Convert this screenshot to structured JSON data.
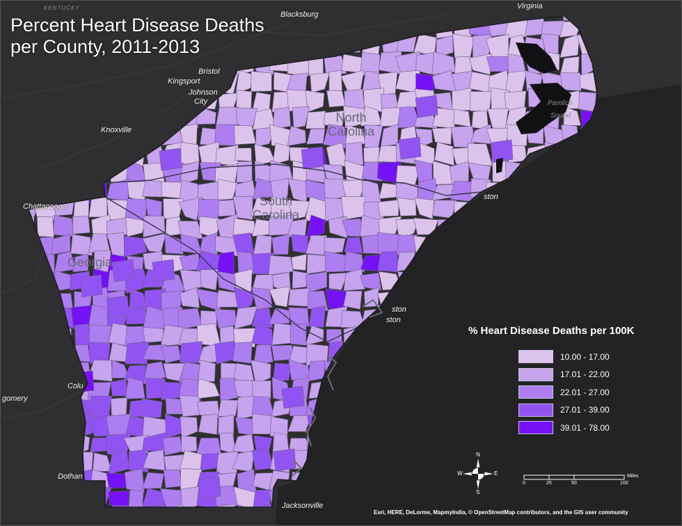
{
  "map": {
    "title_line1": "Percent Heart Disease Deaths",
    "title_line2": "per County, 2011-2013",
    "states": [
      {
        "line1": "North",
        "line2": "Carolina"
      },
      {
        "line1": "South",
        "line2": "Carolina"
      },
      {
        "line1": "Georgia",
        "line2": ""
      }
    ],
    "cities": {
      "kentucky": "KENTUCKY",
      "virginia": "Virginia",
      "blacksburg": "Blacksburg",
      "bristol": "Bristol",
      "kingsport": "Kingsport",
      "johnson_city_1": "Johnson",
      "johnson_city_2": "City",
      "knoxville": "Knoxville",
      "chattanooga": "Chattanooga",
      "columbus": "Colu",
      "montgomery": "gomery",
      "dothan": "Dothan",
      "jacksonville": "Jacksonville",
      "wilmington": "ston",
      "charleston_1": "ston",
      "charleston_2": "ston"
    },
    "water": {
      "pamlico_1": "Pamlico",
      "pamlico_2": "Sound"
    },
    "colors": {
      "class1": "#dcc3ec",
      "class2": "#c6a4ee",
      "class3": "#ad7ef0",
      "class4": "#9154f2",
      "class5": "#7412f5",
      "background": "#2b2b2d",
      "ocean": "#232326"
    }
  },
  "legend": {
    "title": "% Heart Disease Deaths per 100K",
    "items": [
      {
        "label": "10.00 - 17.00",
        "color": "#dcc3ec"
      },
      {
        "label": "17.01 - 22.00",
        "color": "#c6a4ee"
      },
      {
        "label": "22.01 - 27.00",
        "color": "#ad7ef0"
      },
      {
        "label": "27.01 - 39.00",
        "color": "#9154f2"
      },
      {
        "label": "39.01 - 78.00",
        "color": "#7412f5"
      }
    ]
  },
  "compass": {
    "n": "N",
    "s": "S",
    "e": "E",
    "w": "W",
    "icon": "north-arrow-icon"
  },
  "scale": {
    "ticks": [
      "0",
      "25",
      "50",
      "100"
    ],
    "unit": "Miles"
  },
  "attribution": "Esri, HERE, DeLorme, MapmyIndia, © OpenStreetMap contributors, and the GIS user community"
}
